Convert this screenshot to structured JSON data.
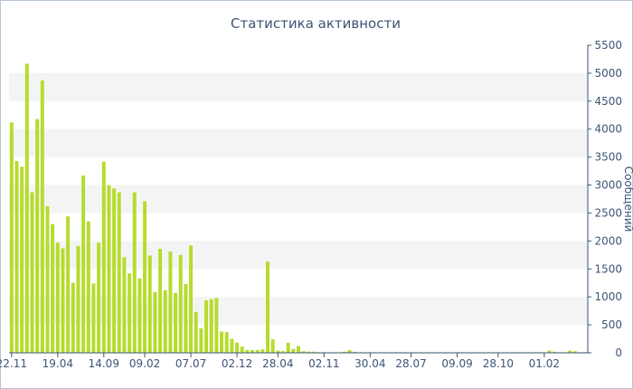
{
  "chart_data": {
    "type": "bar",
    "title": "Статистика активности",
    "xlabel": "",
    "ylabel": "Сообщений",
    "ylim": [
      0,
      5500
    ],
    "yticks": [
      0,
      500,
      1000,
      1500,
      2000,
      2500,
      3000,
      3500,
      4000,
      4500,
      5000,
      5500
    ],
    "grid": "alternating horizontal bands",
    "colors": {
      "bar": "#b5dc2c",
      "last_bar": "#e8502a",
      "axis": "#3d5477",
      "band": "#f4f4f4"
    },
    "x_tick_labels": [
      {
        "label": "22.11",
        "index": 0
      },
      {
        "label": "19.04",
        "index": 9
      },
      {
        "label": "14.09",
        "index": 18
      },
      {
        "label": "09.02",
        "index": 26
      },
      {
        "label": "07.07",
        "index": 35
      },
      {
        "label": "02.12",
        "index": 44
      },
      {
        "label": "28.04",
        "index": 52
      },
      {
        "label": "02.11",
        "index": 61
      },
      {
        "label": "30.04",
        "index": 70
      },
      {
        "label": "28.07",
        "index": 78
      },
      {
        "label": "09.09",
        "index": 87
      },
      {
        "label": "28.10",
        "index": 95
      },
      {
        "label": "01.02",
        "index": 104
      }
    ],
    "values": [
      4120,
      3430,
      3330,
      5170,
      2870,
      4180,
      4870,
      2620,
      2300,
      1970,
      1870,
      2440,
      1250,
      1910,
      3170,
      2350,
      1240,
      1970,
      3420,
      3000,
      2940,
      2870,
      1710,
      1420,
      2870,
      1330,
      2710,
      1740,
      1090,
      1860,
      1120,
      1810,
      1070,
      1750,
      1230,
      1920,
      730,
      440,
      940,
      960,
      980,
      380,
      370,
      250,
      180,
      110,
      50,
      50,
      50,
      60,
      1630,
      240,
      40,
      30,
      180,
      70,
      120,
      30,
      20,
      20,
      10,
      10,
      10,
      10,
      10,
      20,
      50,
      20,
      10,
      10,
      10,
      10,
      10,
      10,
      10,
      10,
      10,
      10,
      10,
      10,
      10,
      10,
      10,
      10,
      10,
      10,
      10,
      10,
      10,
      10,
      10,
      10,
      10,
      10,
      10,
      10,
      10,
      10,
      10,
      10,
      10,
      10,
      10,
      10,
      10,
      40,
      20,
      10,
      10,
      40,
      30,
      10,
      10
    ]
  }
}
